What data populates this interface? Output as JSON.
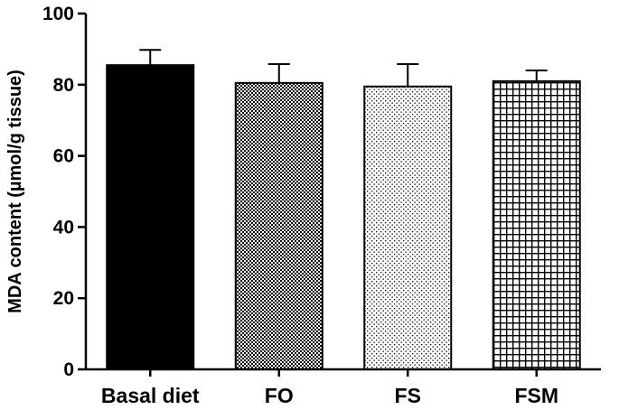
{
  "chart_data": {
    "type": "bar",
    "title": "",
    "xlabel": "",
    "ylabel": "MDA content (µmol/g tissue)",
    "ylim": [
      0,
      100
    ],
    "yticks": [
      "0",
      "20",
      "40",
      "60",
      "80",
      "100"
    ],
    "categories": [
      "Basal diet",
      "FO",
      "FS",
      "FSM"
    ],
    "values": [
      85.5,
      80.5,
      79.5,
      81.0
    ],
    "errors": [
      4.3,
      5.3,
      6.3,
      3.0
    ],
    "patterns": [
      "solid-black",
      "checkerboard",
      "dots",
      "grid"
    ],
    "colors": {
      "bar_fill": "#000000",
      "pattern_background": "#ffffff",
      "axis": "#000000"
    }
  }
}
